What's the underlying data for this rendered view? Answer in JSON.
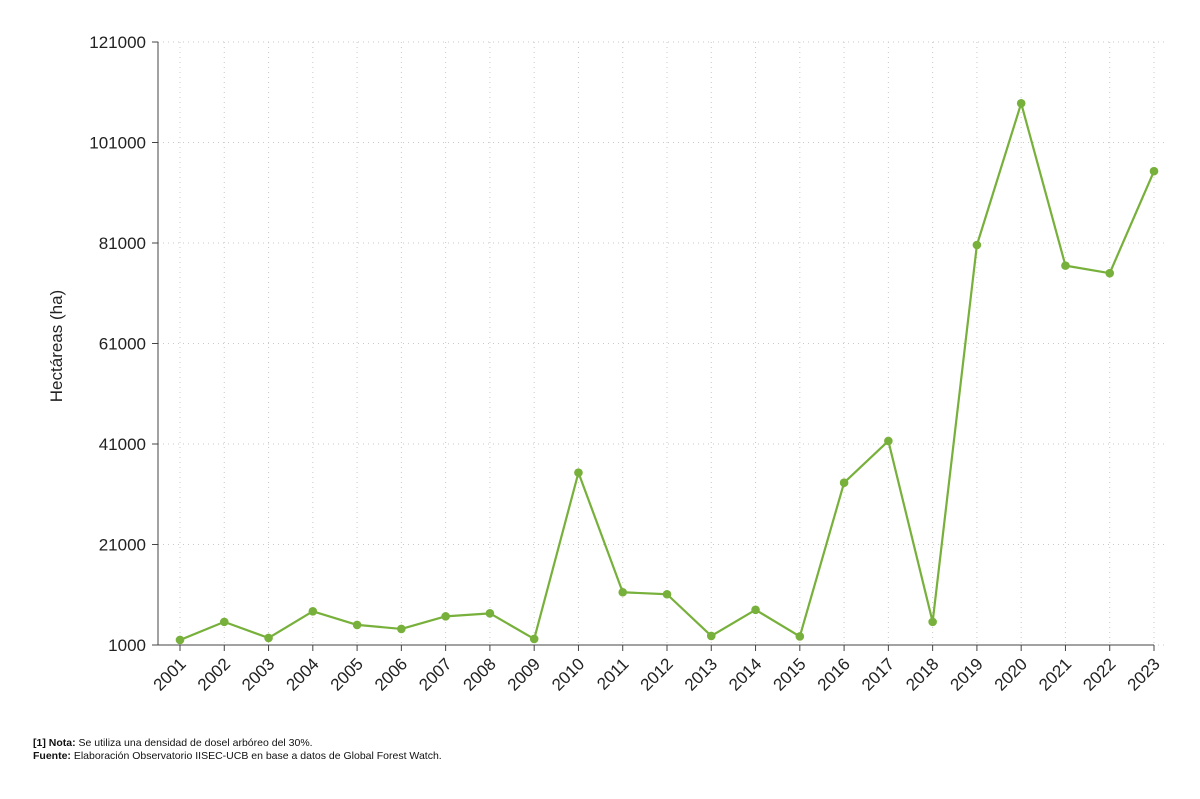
{
  "chart_data": {
    "type": "line",
    "title": "",
    "ylabel": "Hectáreas (ha)",
    "xlabel": "",
    "ylim": [
      1000,
      121000
    ],
    "yticks": [
      1000,
      21000,
      41000,
      61000,
      81000,
      101000,
      121000
    ],
    "grid": true,
    "x": [
      "2001",
      "2002",
      "2003",
      "2004",
      "2005",
      "2006",
      "2007",
      "2008",
      "2009",
      "2010",
      "2011",
      "2012",
      "2013",
      "2014",
      "2015",
      "2016",
      "2017",
      "2018",
      "2019",
      "2020",
      "2021",
      "2022",
      "2023"
    ],
    "series": [
      {
        "values": [
          2000,
          5600,
          2400,
          7700,
          5000,
          4200,
          6700,
          7300,
          2200,
          35300,
          11500,
          11100,
          2800,
          8000,
          2700,
          33300,
          41600,
          5600,
          80600,
          108800,
          76500,
          75000,
          95300
        ],
        "color": "#77b03a"
      }
    ]
  },
  "notes": {
    "nota_label": "[1] Nota:",
    "nota_text": " Se utiliza una densidad de dosel arbóreo del 30%.",
    "fuente_label": "Fuente:",
    "fuente_text": " Elaboración Observatorio IISEC-UCB en base a datos de Global Forest Watch."
  }
}
